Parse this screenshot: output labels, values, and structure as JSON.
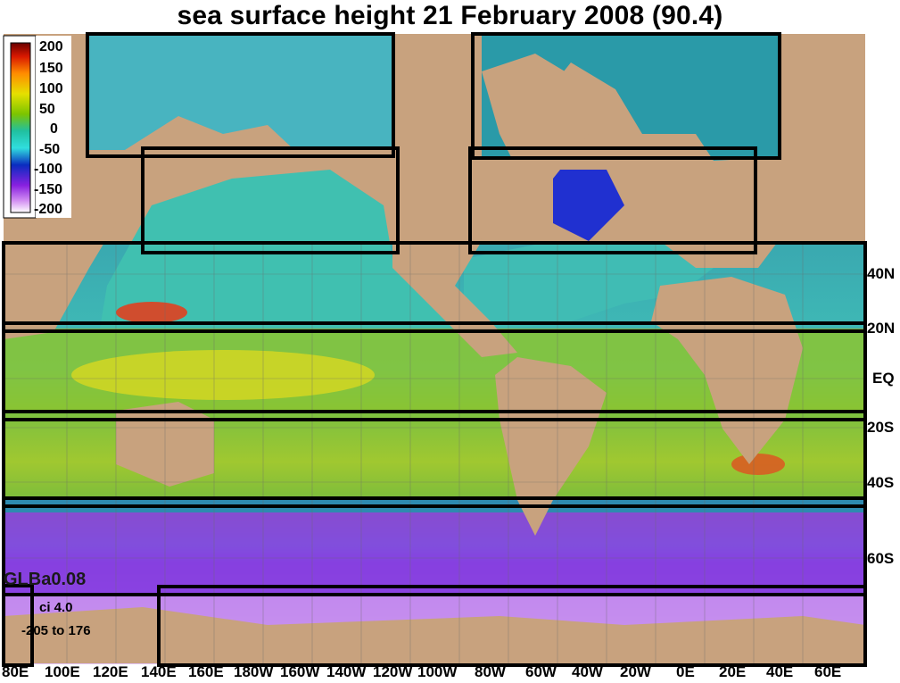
{
  "title": "sea surface height 21 February 2008 (90.4)",
  "model": "GLBa0.08",
  "contour_interval": "ci 4.0",
  "range": "-205 to 176",
  "colorbar": {
    "labels": [
      "200",
      "150",
      "100",
      "50",
      "0",
      "-50",
      "-100",
      "-150",
      "-200"
    ],
    "colors": [
      "#7a0000",
      "#e02000",
      "#ff9a00",
      "#e8e000",
      "#78c800",
      "#10b0a0",
      "#30d8d8",
      "#0a30c0",
      "#8a20e0",
      "#d090f0",
      "#ffffff"
    ]
  },
  "lat_labels": [
    "40N",
    "20N",
    "EQ",
    "20S",
    "40S",
    "60S"
  ],
  "lon_labels": [
    "80E",
    "100E",
    "120E",
    "140E",
    "160E",
    "180W",
    "160W",
    "140W",
    "120W",
    "100W",
    "80W",
    "60W",
    "40W",
    "20W",
    "0E",
    "20E",
    "40E",
    "60E"
  ],
  "colors": {
    "land": "#c8a27e",
    "frame": "#000000"
  }
}
